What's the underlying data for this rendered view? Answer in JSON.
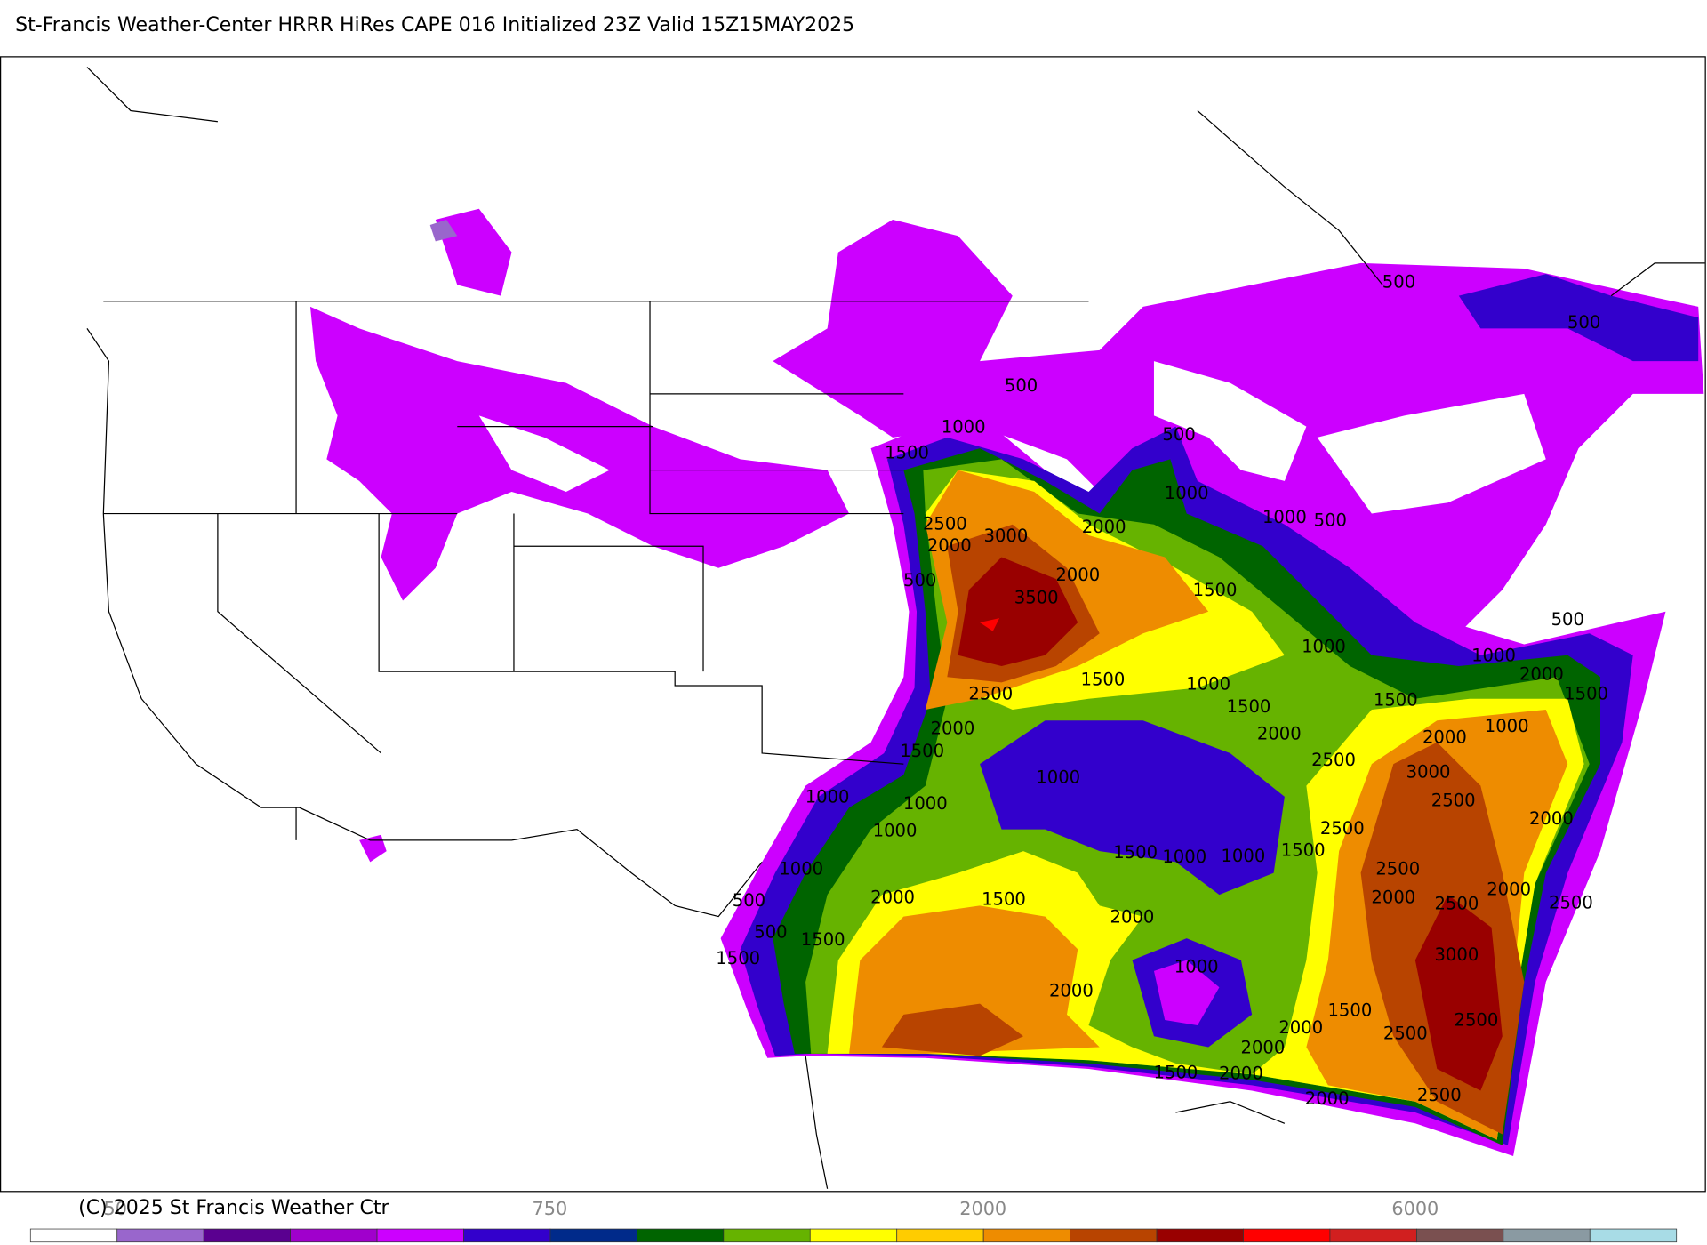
{
  "header": {
    "title": "St-Francis Weather-Center HRRR HiRes CAPE  016 Initialized  23Z Valid 15Z15MAY2025"
  },
  "contour_labels": [
    "500",
    "500",
    "500",
    "1000",
    "1500",
    "500",
    "1000",
    "1000",
    "500",
    "2500",
    "2000",
    "3000",
    "2000",
    "2000",
    "500",
    "3500",
    "1500",
    "1000",
    "500",
    "1000",
    "2000",
    "1500",
    "2500",
    "1500",
    "1000",
    "1500",
    "1500",
    "2000",
    "2000",
    "1500",
    "2500",
    "2000",
    "1000",
    "3000",
    "1000",
    "1000",
    "1000",
    "2500",
    "2000",
    "1000",
    "2500",
    "1500",
    "1500",
    "1000",
    "1000",
    "1000",
    "2500",
    "2000",
    "1500",
    "2000",
    "2500",
    "2000",
    "2500",
    "500",
    "2000",
    "500",
    "1500",
    "1500",
    "3000",
    "1000",
    "2000",
    "1500",
    "2000",
    "2500",
    "2500",
    "2000",
    "1500",
    "2000",
    "2000",
    "2500"
  ],
  "colorbar": {
    "colors": [
      "#ffffff",
      "#9966cc",
      "#5a0090",
      "#a000cc",
      "#cc00ff",
      "#3300cc",
      "#002a8a",
      "#006400",
      "#66b300",
      "#ffff00",
      "#ffcc00",
      "#ee8c00",
      "#b84400",
      "#990000",
      "#ff0000",
      "#d11f1f",
      "#7a5050",
      "#8a9aa2",
      "#a8dce6"
    ],
    "labels": [
      "50",
      "750",
      "2000",
      "6000"
    ]
  },
  "footer": {
    "copyright": "(C) 2025 St Francis Weather Ctr"
  }
}
